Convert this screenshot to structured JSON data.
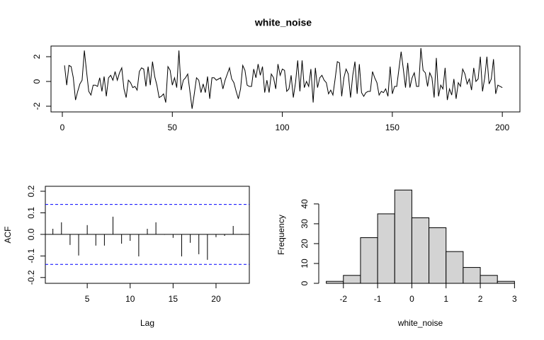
{
  "chart_data": [
    {
      "type": "line",
      "title": "white_noise",
      "color": "#000000",
      "x": [
        1,
        2,
        3,
        4,
        5,
        6,
        7,
        8,
        9,
        10,
        11,
        12,
        13,
        14,
        15,
        16,
        17,
        18,
        19,
        20,
        21,
        22,
        23,
        24,
        25,
        26,
        27,
        28,
        29,
        30,
        31,
        32,
        33,
        34,
        35,
        36,
        37,
        38,
        39,
        40,
        41,
        42,
        43,
        44,
        45,
        46,
        47,
        48,
        49,
        50,
        51,
        52,
        53,
        54,
        55,
        56,
        57,
        58,
        59,
        60,
        61,
        62,
        63,
        64,
        65,
        66,
        67,
        68,
        69,
        70,
        71,
        72,
        73,
        74,
        75,
        76,
        77,
        78,
        79,
        80,
        81,
        82,
        83,
        84,
        85,
        86,
        87,
        88,
        89,
        90,
        91,
        92,
        93,
        94,
        95,
        96,
        97,
        98,
        99,
        100,
        101,
        102,
        103,
        104,
        105,
        106,
        107,
        108,
        109,
        110,
        111,
        112,
        113,
        114,
        115,
        116,
        117,
        118,
        119,
        120,
        121,
        122,
        123,
        124,
        125,
        126,
        127,
        128,
        129,
        130,
        131,
        132,
        133,
        134,
        135,
        136,
        137,
        138,
        139,
        140,
        141,
        142,
        143,
        144,
        145,
        146,
        147,
        148,
        149,
        150,
        151,
        152,
        153,
        154,
        155,
        156,
        157,
        158,
        159,
        160,
        161,
        162,
        163,
        164,
        165,
        166,
        167,
        168,
        169,
        170,
        171,
        172,
        173,
        174,
        175,
        176,
        177,
        178,
        179,
        180,
        181,
        182,
        183,
        184,
        185,
        186,
        187,
        188,
        189,
        190,
        191,
        192,
        193,
        194,
        195,
        196,
        197,
        198,
        199,
        200
      ],
      "values": [
        1.3,
        -0.3,
        1.3,
        1.2,
        0.3,
        -1.5,
        -0.8,
        -0.2,
        0.1,
        2.5,
        0.8,
        -0.8,
        -1.1,
        -0.3,
        -0.3,
        -0.4,
        0.3,
        -0.8,
        0.4,
        -1.2,
        0.3,
        0.5,
        0.1,
        0.8,
        0.1,
        0.7,
        1.1,
        -0.6,
        -1.3,
        0.1,
        -0.1,
        -0.5,
        -0.4,
        -0.7,
        0.8,
        1.1,
        1.0,
        -0.4,
        1.2,
        -0.3,
        1.6,
        0.4,
        -0.3,
        -1.3,
        -1.2,
        -1.0,
        -1.7,
        1.2,
        0.9,
        -0.3,
        0.3,
        -0.5,
        2.5,
        -0.7,
        0.1,
        0.3,
        0.6,
        -0.8,
        -2.2,
        -1.0,
        0.3,
        0.1,
        -0.9,
        -0.2,
        -0.9,
        0.4,
        -1.4,
        0.3,
        0.3,
        0.1,
        0.2,
        0.3,
        -0.6,
        0.1,
        0.6,
        1.1,
        0.2,
        -0.1,
        -0.8,
        -1.4,
        -0.6,
        1.3,
        0.9,
        -0.3,
        -0.4,
        -0.4,
        1.0,
        0.3,
        1.4,
        0.5,
        1.2,
        -0.9,
        0.1,
        -0.9,
        0.6,
        0.3,
        -0.6,
        1.4,
        0.5,
        1.0,
        0.9,
        -0.8,
        -0.6,
        0.5,
        -1.3,
        -0.1,
        1.7,
        -0.8,
        1.7,
        -0.5,
        0.0,
        -0.4,
        1.0,
        -1.7,
        1.1,
        -0.5,
        0.3,
        0.5,
        0.1,
        -0.1,
        -1.0,
        -0.7,
        -1.1,
        0.2,
        1.6,
        1.5,
        -1.2,
        0.3,
        1.0,
        0.6,
        -1.3,
        0.5,
        1.6,
        -1.0,
        1.4,
        -0.9,
        -1.2,
        -0.9,
        -0.8,
        -0.8,
        0.8,
        0.3,
        -0.1,
        -1.1,
        -0.8,
        -0.9,
        -0.6,
        -1.2,
        1.2,
        -1.0,
        -0.4,
        -0.4,
        1.0,
        2.4,
        1.0,
        -0.5,
        1.5,
        -0.5,
        0.3,
        0.7,
        -0.4,
        -0.4,
        2.7,
        0.9,
        0.7,
        -0.4,
        0.7,
        0.3,
        -1.3,
        1.9,
        -1.2,
        -0.3,
        -0.6,
        1.1,
        -1.5,
        -0.6,
        -1.1,
        0.2,
        -1.4,
        -0.1,
        -0.4,
        1.0,
        0.6,
        -0.2,
        0.2,
        -0.7,
        1.1,
        0.0,
        0.2,
        2.0,
        -0.8,
        0.3,
        2.0,
        -0.2,
        0.2,
        1.8,
        -1.0,
        -0.3,
        -0.4,
        -0.5
      ],
      "xlim": [
        -5.15,
        208
      ],
      "ylim": [
        -2.46,
        2.86
      ],
      "xticks": [
        0,
        50,
        100,
        150,
        200
      ],
      "yticks": [
        -2,
        0,
        2
      ]
    },
    {
      "type": "acf",
      "xlabel": "Lag",
      "ylabel": "ACF",
      "color": "#000000",
      "x": [
        1,
        2,
        3,
        4,
        5,
        6,
        7,
        8,
        9,
        10,
        11,
        12,
        13,
        14,
        15,
        16,
        17,
        18,
        19,
        20,
        21,
        22,
        23
      ],
      "values": [
        0.026,
        0.056,
        -0.049,
        -0.098,
        0.043,
        -0.052,
        -0.052,
        0.082,
        -0.043,
        -0.03,
        -0.102,
        0.026,
        0.056,
        -0.002,
        -0.016,
        -0.102,
        -0.039,
        -0.092,
        -0.118,
        -0.013,
        -0.007,
        0.039,
        0.002
      ],
      "reference_lines": [
        0.139,
        -0.139
      ],
      "reference_color": "#0000ff",
      "xlim": [
        0.12,
        23.88
      ],
      "ylim": [
        -0.227,
        0.223
      ],
      "xticks": [
        5,
        10,
        15,
        20
      ],
      "yticks": [
        {
          "value": -0.2,
          "label": "-0.2"
        },
        {
          "value": -0.1,
          "label": "-0.1"
        },
        {
          "value": 0,
          "label": "0.0"
        },
        {
          "value": 0.1,
          "label": "0.1"
        },
        {
          "value": 0.2,
          "label": "0.2"
        }
      ]
    },
    {
      "type": "histogram",
      "xlabel": "white_noise",
      "ylabel": "Frequency",
      "color": "#d3d3d3",
      "bins": [
        -2.5,
        -2,
        -1.5,
        -1,
        -0.5,
        0,
        0.5,
        1,
        1.5,
        2,
        2.5,
        3
      ],
      "values": [
        1,
        4,
        23,
        35,
        47,
        33,
        28,
        16,
        8,
        4,
        1
      ],
      "xlim": [
        -2.72,
        3.22
      ],
      "ylim": [
        0,
        48.88
      ],
      "xticks": [
        -2,
        -1,
        0,
        1,
        2,
        3
      ],
      "yticks": [
        0,
        10,
        20,
        30,
        40
      ]
    }
  ]
}
